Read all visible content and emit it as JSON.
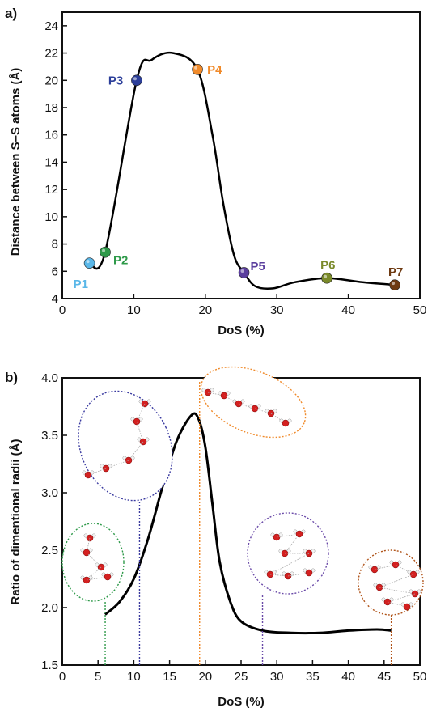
{
  "chart_data": [
    {
      "type": "line",
      "panel_label": "a)",
      "xlabel": "DoS (%)",
      "ylabel": "Distance between S–S atoms (Å)",
      "xlim": [
        0,
        50
      ],
      "ylim": [
        4,
        25
      ],
      "xticks": [
        0,
        10,
        20,
        30,
        40,
        50
      ],
      "yticks": [
        4,
        6,
        8,
        10,
        12,
        14,
        16,
        18,
        20,
        22,
        24
      ],
      "curve": {
        "x": [
          3.8,
          6.0,
          10.4,
          12.5,
          15.5,
          18.9,
          21.0,
          22.5,
          24.0,
          25.4,
          27.0,
          29.5,
          32.5,
          37.0,
          42.0,
          46.5
        ],
        "y": [
          6.6,
          7.4,
          20.0,
          21.5,
          22.0,
          20.8,
          16.0,
          11.0,
          7.2,
          5.9,
          4.9,
          4.75,
          5.2,
          5.5,
          5.2,
          5.0
        ]
      },
      "points": [
        {
          "label": "P1",
          "x": 3.8,
          "y": 6.6,
          "color": "#5ab7e8"
        },
        {
          "label": "P2",
          "x": 6.0,
          "y": 7.4,
          "color": "#2f9a4a"
        },
        {
          "label": "P3",
          "x": 10.4,
          "y": 20.0,
          "color": "#2c3f9a"
        },
        {
          "label": "P4",
          "x": 18.9,
          "y": 20.8,
          "color": "#f08a2a"
        },
        {
          "label": "P5",
          "x": 25.4,
          "y": 5.9,
          "color": "#5b3f9e"
        },
        {
          "label": "P6",
          "x": 37.0,
          "y": 5.5,
          "color": "#7a8a2a"
        },
        {
          "label": "P7",
          "x": 46.5,
          "y": 5.0,
          "color": "#6e3a12"
        }
      ]
    },
    {
      "type": "line",
      "panel_label": "b)",
      "xlabel": "DoS (%)",
      "ylabel": "Ratio of dimentional radii (Å)",
      "xlim": [
        0,
        50
      ],
      "ylim": [
        1.5,
        4.0
      ],
      "xticks": [
        0,
        5,
        10,
        15,
        20,
        25,
        30,
        35,
        40,
        45,
        50
      ],
      "yticks": [
        1.5,
        2.0,
        2.5,
        3.0,
        3.5,
        4.0
      ],
      "curve": {
        "x": [
          6.0,
          8.0,
          10.0,
          12.0,
          14.0,
          16.0,
          18.0,
          19.0,
          20.0,
          21.0,
          22.0,
          23.5,
          25.0,
          28.0,
          32.0,
          36.0,
          40.0,
          44.0,
          46.0
        ],
        "y": [
          1.94,
          2.05,
          2.25,
          2.6,
          3.05,
          3.45,
          3.67,
          3.65,
          3.4,
          2.9,
          2.4,
          2.05,
          1.88,
          1.8,
          1.78,
          1.78,
          1.8,
          1.81,
          1.8
        ]
      },
      "snapshots": [
        {
          "x": 6.0,
          "color": "#2f9a4a"
        },
        {
          "x": 10.8,
          "color": "#3a3aa0"
        },
        {
          "x": 19.2,
          "color": "#f08a2a"
        },
        {
          "x": 28.0,
          "color": "#6a4aa8"
        },
        {
          "x": 46.0,
          "color": "#b0541a"
        }
      ]
    }
  ]
}
